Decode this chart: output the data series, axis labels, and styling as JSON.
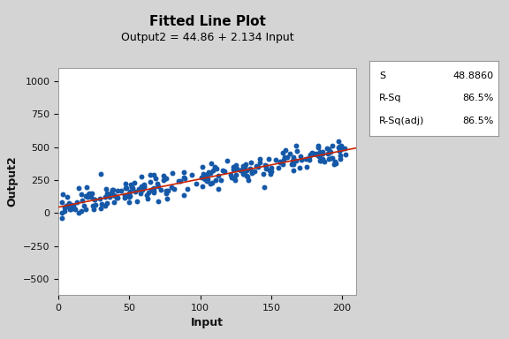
{
  "title": "Fitted Line Plot",
  "subtitle": "Output2 = 44.86 + 2.134 Input",
  "xlabel": "Input",
  "ylabel": "Output2",
  "intercept": 44.86,
  "slope": 2.134,
  "x_range": [
    0,
    210
  ],
  "y_range": [
    -620,
    1100
  ],
  "x_ticks": [
    0,
    50,
    100,
    150,
    200
  ],
  "y_ticks": [
    -500,
    -250,
    0,
    250,
    500,
    750,
    1000
  ],
  "scatter_color": "#1558A8",
  "line_color": "#CC2200",
  "bg_color": "#D4D4D4",
  "plot_bg": "#FFFFFF",
  "stat_labels": [
    "S",
    "R-Sq",
    "R-Sq(adj)"
  ],
  "stat_values": [
    "48.8860",
    "86.5%",
    "86.5%"
  ],
  "n_points": 250,
  "seed": 42,
  "noise_std": 48.886,
  "title_fontsize": 11,
  "subtitle_fontsize": 9,
  "label_fontsize": 9,
  "tick_fontsize": 8,
  "stat_fontsize": 8
}
